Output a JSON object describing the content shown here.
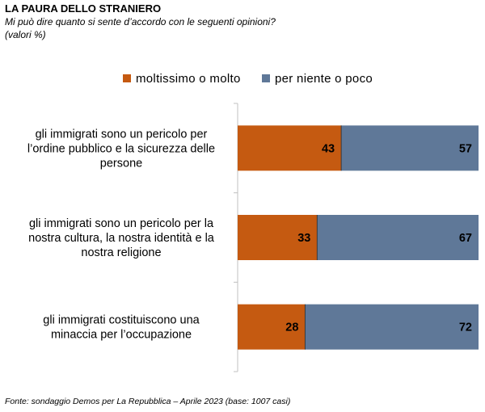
{
  "header": {
    "title": "LA PAURA DELLO STRANIERO",
    "subtitle_line1": "Mi può dire quanto si sente d’accordo con le seguenti opinioni?",
    "subtitle_line2": "(valori %)"
  },
  "footer": {
    "source": "Fonte: sondaggio Demos per La Repubblica – Aprile 2023 (base: 1007 casi)"
  },
  "colors": {
    "series_1": "#c55a11",
    "series_2": "#5f7898",
    "axis": "#c0c0c0"
  },
  "chart_data": {
    "type": "bar",
    "orientation": "horizontal",
    "stacked": true,
    "title": "LA PAURA DELLO STRANIERO",
    "xlim": [
      0,
      100
    ],
    "legend_position": "top",
    "grid": false,
    "categories": [
      [
        "gli immigrati sono un pericolo per",
        "l’ordine pubblico e la sicurezza delle",
        "persone"
      ],
      [
        "gli immigrati sono un pericolo per la",
        "nostra cultura, la nostra identità e la",
        "nostra religione"
      ],
      [
        "gli immigrati costituiscono una",
        "minaccia per l’occupazione"
      ]
    ],
    "series": [
      {
        "name": "moltissimo o molto",
        "values": [
          43,
          33,
          28
        ]
      },
      {
        "name": "per niente o poco",
        "values": [
          57,
          67,
          72
        ]
      }
    ]
  }
}
